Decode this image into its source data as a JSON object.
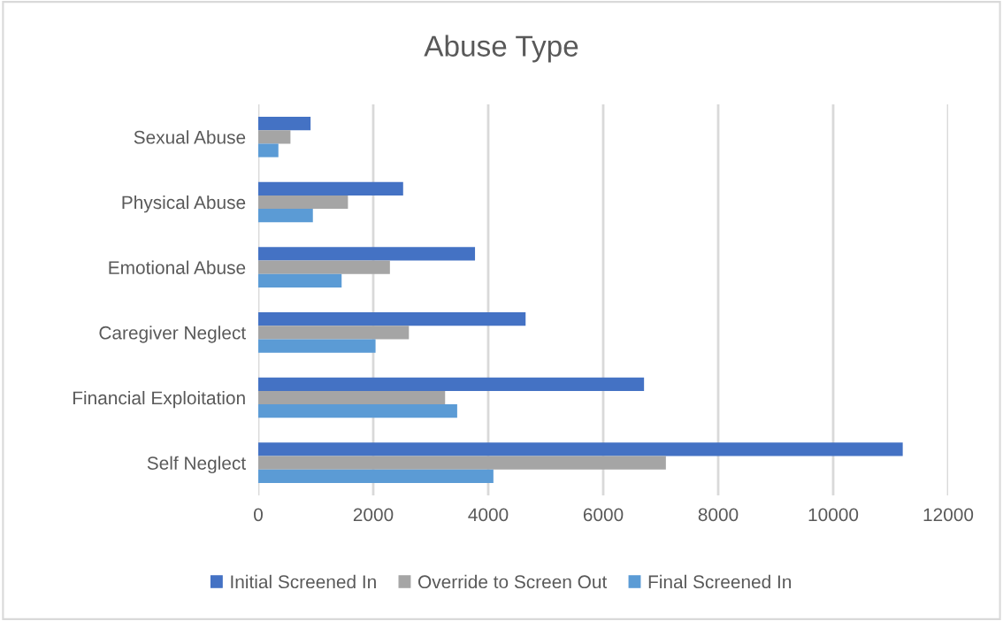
{
  "chart_data": {
    "type": "bar",
    "orientation": "horizontal",
    "title": "Abuse Type",
    "categories": [
      "Sexual Abuse",
      "Physical Abuse",
      "Emotional Abuse",
      "Caregiver Neglect",
      "Financial Exploitation",
      "Self Neglect"
    ],
    "series": [
      {
        "name": "Initial Screened In",
        "color": "#4472c4",
        "values": [
          910,
          2520,
          3770,
          4650,
          6710,
          11210
        ]
      },
      {
        "name": "Override to Screen Out",
        "color": "#a5a5a5",
        "values": [
          560,
          1560,
          2290,
          2620,
          3250,
          7090
        ]
      },
      {
        "name": "Final Screened In",
        "color": "#5b9bd5",
        "values": [
          350,
          950,
          1450,
          2040,
          3460,
          4090
        ]
      }
    ],
    "xlim": [
      0,
      12000
    ],
    "xticks": [
      0,
      2000,
      4000,
      6000,
      8000,
      10000,
      12000
    ],
    "grid": "x",
    "legend": "bottom"
  }
}
